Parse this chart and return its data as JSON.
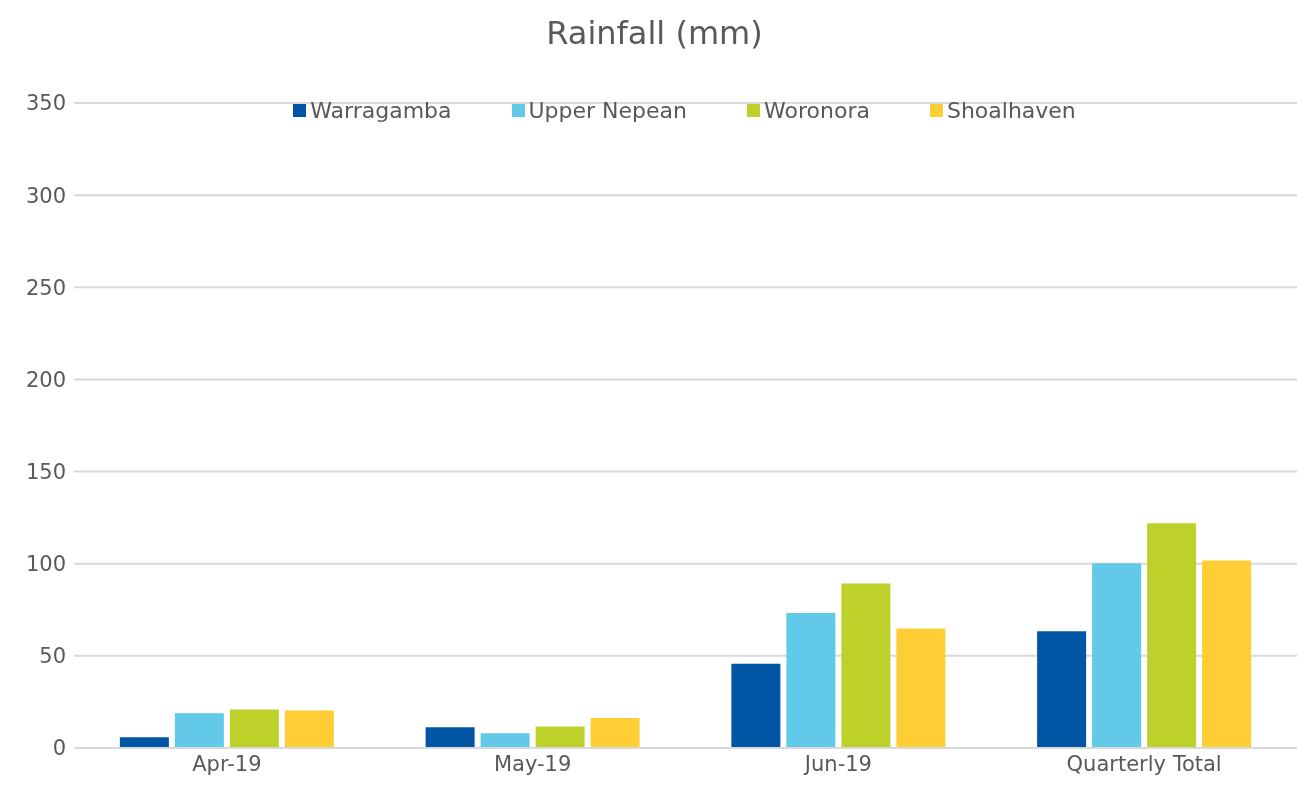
{
  "chart_data": {
    "type": "bar",
    "title": "Rainfall (mm)",
    "categories": [
      "Apr-19",
      "May-19",
      "Jun-19",
      "Quarterly Total"
    ],
    "series": [
      {
        "name": "Warragamba",
        "color": "#0055a5",
        "values": [
          5.9,
          11.3,
          45.7,
          63.3
        ]
      },
      {
        "name": "Upper Nepean",
        "color": "#63c9e8",
        "values": [
          18.9,
          8.0,
          73.2,
          100.2
        ]
      },
      {
        "name": "Woronora",
        "color": "#bed12b",
        "values": [
          20.9,
          11.7,
          89.3,
          122
        ]
      },
      {
        "name": "Shoalhaven",
        "color": "#ffcd34",
        "values": [
          20.4,
          16.3,
          64.9,
          101.8
        ]
      }
    ],
    "ylim": [
      0,
      350
    ],
    "yticks": [
      0,
      50,
      100,
      150,
      200,
      250,
      300,
      350
    ],
    "grid": "y",
    "legend": "top"
  }
}
